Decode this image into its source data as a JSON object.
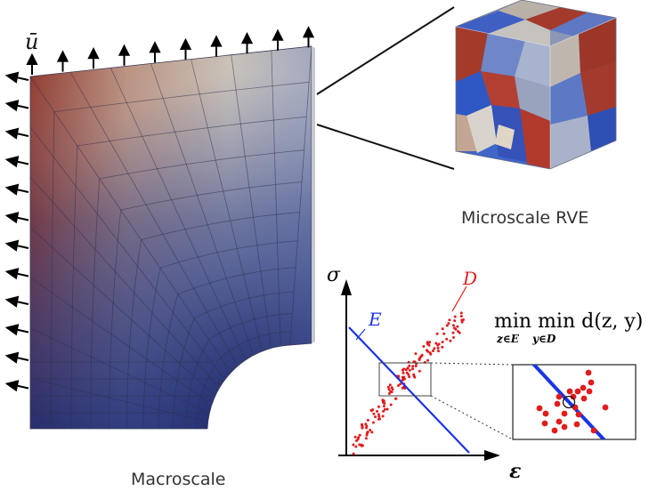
{
  "labels": {
    "u_bar": "ū",
    "macroscale": "Macroscale",
    "microscale_rve": "Microscale RVE",
    "sigma": "σ",
    "epsilon": "ε",
    "constraint_set": "E",
    "data_set": "D",
    "min_expr": "min min d(z, y)",
    "min_sub_1": "z∈E",
    "min_sub_2": "y∈D"
  },
  "colors": {
    "line_E": "#1a33e6",
    "points_D": "#e21b1b",
    "mesh_light": "#d9c8b6",
    "mesh_dark": "#1f2a6b",
    "mesh_red": "#8c2a1e"
  }
}
